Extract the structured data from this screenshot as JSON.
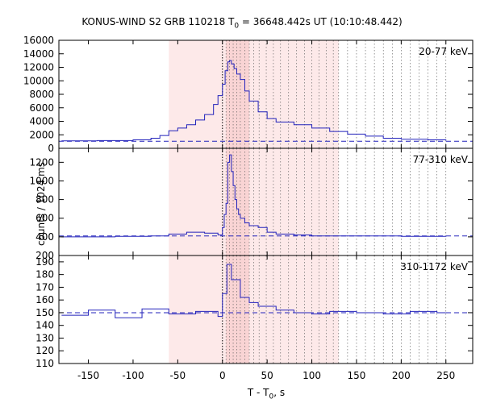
{
  "title_prefix": "KONUS-WIND S2 GRB 110218 T",
  "title_sub": "0",
  "title_suffix": " = 36648.442s UT (10:10:48.442)",
  "xlabel_prefix": "T - T",
  "xlabel_sub": "0",
  "xlabel_suffix": ", s",
  "ylabel": "counts / 1024 ms",
  "colors": {
    "curve": "#2222bb",
    "background_level": "#2222bb",
    "shade_light": "#fde9e9",
    "shade_dark": "#f9d4d4"
  },
  "chart_data": {
    "type": "line",
    "x_ticks": [
      -150,
      -100,
      -50,
      0,
      50,
      100,
      150,
      200,
      250
    ],
    "xlim": [
      -183,
      280
    ],
    "shaded_intervals": [
      {
        "from": -60,
        "to": 130,
        "level": "light"
      },
      {
        "from": 4,
        "to": 30,
        "level": "dark"
      }
    ],
    "trigger_time": 0,
    "spectrum_boundaries": [
      4,
      8,
      12,
      16,
      20,
      25,
      30,
      35,
      41,
      49,
      57,
      65,
      74,
      83,
      92,
      100,
      108,
      116,
      124,
      130,
      140,
      150,
      160,
      170,
      180,
      190,
      200,
      210,
      220,
      230,
      240,
      250
    ],
    "panels": [
      {
        "band": "20-77 keV",
        "ylim": [
          0,
          16000
        ],
        "y_ticks": [
          0,
          2000,
          4000,
          6000,
          8000,
          10000,
          12000,
          14000,
          16000
        ],
        "background": 1050,
        "series": {
          "x": [
            -180,
            -140,
            -100,
            -80,
            -70,
            -60,
            -50,
            -40,
            -30,
            -20,
            -10,
            -5,
            0,
            3,
            6,
            8,
            10,
            13,
            16,
            20,
            25,
            30,
            40,
            50,
            60,
            80,
            100,
            120,
            140,
            160,
            180,
            200,
            230,
            250
          ],
          "y": [
            1100,
            1150,
            1250,
            1500,
            1900,
            2600,
            3000,
            3500,
            4200,
            5000,
            6500,
            7800,
            9500,
            11500,
            12800,
            13000,
            12500,
            11800,
            11000,
            10200,
            8500,
            7000,
            5400,
            4400,
            3900,
            3500,
            3000,
            2500,
            2100,
            1800,
            1500,
            1350,
            1250,
            1150
          ]
        }
      },
      {
        "band": "77-310 keV",
        "ylim": [
          200,
          1350
        ],
        "y_ticks": [
          200,
          400,
          600,
          800,
          1000,
          1200
        ],
        "background": 410,
        "series": {
          "x": [
            -180,
            -120,
            -80,
            -60,
            -40,
            -20,
            -5,
            0,
            2,
            4,
            6,
            8,
            10,
            12,
            14,
            16,
            18,
            20,
            25,
            30,
            40,
            50,
            60,
            80,
            100,
            150,
            200,
            250
          ],
          "y": [
            400,
            405,
            410,
            430,
            450,
            440,
            420,
            500,
            640,
            760,
            1200,
            1280,
            1100,
            950,
            800,
            700,
            640,
            600,
            550,
            520,
            500,
            450,
            430,
            420,
            410,
            410,
            405,
            410
          ]
        }
      },
      {
        "band": "310-1172 keV",
        "ylim": [
          110,
          195
        ],
        "y_ticks": [
          110,
          120,
          130,
          140,
          150,
          160,
          170,
          180,
          190
        ],
        "background": 150,
        "series": {
          "x": [
            -180,
            -150,
            -120,
            -90,
            -60,
            -30,
            -5,
            0,
            5,
            10,
            20,
            30,
            40,
            60,
            80,
            100,
            120,
            150,
            180,
            210,
            240,
            250
          ],
          "y": [
            148,
            152,
            146,
            153,
            149,
            151,
            147,
            165,
            188,
            176,
            162,
            158,
            155,
            152,
            150,
            149,
            151,
            150,
            149,
            151,
            150,
            150
          ]
        }
      }
    ]
  }
}
